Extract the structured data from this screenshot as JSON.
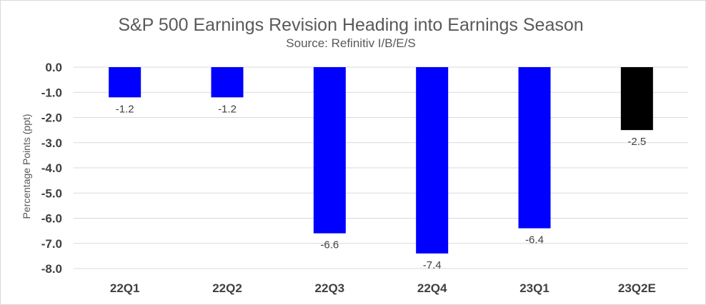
{
  "chart_data": {
    "type": "bar",
    "title": "S&P 500 Earnings Revision Heading into Earnings Season",
    "subtitle": "Source: Refinitiv I/B/E/S",
    "xlabel": "",
    "ylabel": "Percentage Points (ppt)",
    "categories": [
      "22Q1",
      "22Q2",
      "22Q3",
      "22Q4",
      "23Q1",
      "23Q2E"
    ],
    "values": [
      -1.2,
      -1.2,
      -6.6,
      -7.4,
      -6.4,
      -2.5
    ],
    "data_labels": [
      "-1.2",
      "-1.2",
      "-6.6",
      "-7.4",
      "-6.4",
      "-2.5"
    ],
    "bar_colors": [
      "#0000ff",
      "#0000ff",
      "#0000ff",
      "#0000ff",
      "#0000ff",
      "#000000"
    ],
    "ylim": [
      -8.0,
      0.0
    ],
    "yticks": [
      0.0,
      -1.0,
      -2.0,
      -3.0,
      -4.0,
      -5.0,
      -6.0,
      -7.0,
      -8.0
    ],
    "ytick_labels": [
      "0.0",
      "-1.0",
      "-2.0",
      "-3.0",
      "-4.0",
      "-5.0",
      "-6.0",
      "-7.0",
      "-8.0"
    ],
    "grid": true,
    "legend": "none"
  }
}
